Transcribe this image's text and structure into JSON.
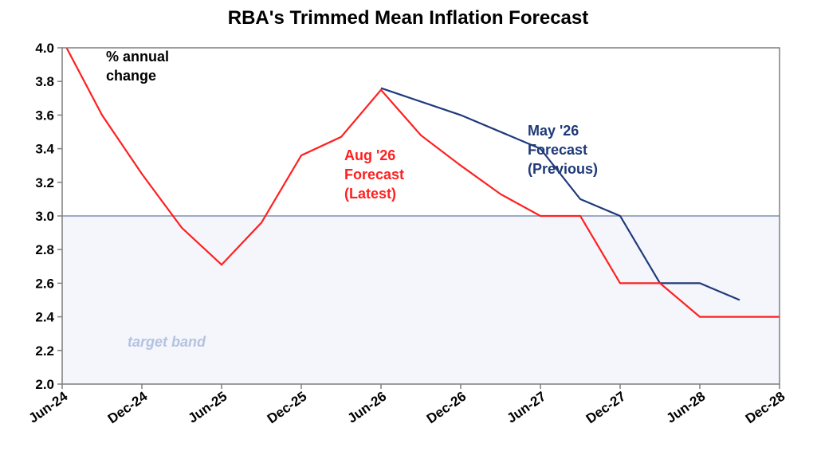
{
  "chart_data": {
    "type": "line",
    "title": "RBA's Trimmed Mean Inflation Forecast",
    "ylabel": "% annual change",
    "ylim": [
      2.0,
      4.0
    ],
    "y_ticks": [
      "4.0",
      "3.8",
      "3.6",
      "3.4",
      "3.2",
      "3.0",
      "2.8",
      "2.6",
      "2.4",
      "2.2",
      "2.0"
    ],
    "x_tick_labels": [
      "Jun-24",
      "Dec-24",
      "Jun-25",
      "Dec-25",
      "Jun-26",
      "Dec-26",
      "Jun-27",
      "Dec-27",
      "Jun-28",
      "Dec-28"
    ],
    "xlim": [
      "2024-06",
      "2028-12"
    ],
    "target_band": {
      "label": "target band",
      "range": [
        2.0,
        3.0
      ],
      "color": "#f4f6fc",
      "edge_color": "#7f8fb3"
    },
    "series": [
      {
        "label": "May '26 Forecast (Previous)",
        "label_lines": [
          "May '26",
          "Forecast",
          "(Previous)"
        ],
        "color": "#1f3a7a",
        "points": [
          {
            "x": "2026-06",
            "y": 3.76
          },
          {
            "x": "2026-12",
            "y": 3.6
          },
          {
            "x": "2027-06",
            "y": 3.4
          },
          {
            "x": "2027-09",
            "y": 3.1
          },
          {
            "x": "2027-12",
            "y": 3.0
          },
          {
            "x": "2028-03",
            "y": 2.6
          },
          {
            "x": "2028-06",
            "y": 2.6
          },
          {
            "x": "2028-09",
            "y": 2.5
          }
        ]
      },
      {
        "label": "Aug '26 Forecast (Latest)",
        "label_lines": [
          "Aug '26",
          "Forecast",
          "(Latest)"
        ],
        "color": "#ff2020",
        "points": [
          {
            "x": "2024-06",
            "y": 4.05
          },
          {
            "x": "2024-09",
            "y": 3.6
          },
          {
            "x": "2024-12",
            "y": 3.25
          },
          {
            "x": "2025-03",
            "y": 2.93
          },
          {
            "x": "2025-06",
            "y": 2.71
          },
          {
            "x": "2025-09",
            "y": 2.96
          },
          {
            "x": "2025-12",
            "y": 3.36
          },
          {
            "x": "2026-03",
            "y": 3.47
          },
          {
            "x": "2026-06",
            "y": 3.75
          },
          {
            "x": "2026-09",
            "y": 3.48
          },
          {
            "x": "2026-12",
            "y": 3.3
          },
          {
            "x": "2027-03",
            "y": 3.13
          },
          {
            "x": "2027-06",
            "y": 3.0
          },
          {
            "x": "2027-09",
            "y": 3.0
          },
          {
            "x": "2027-12",
            "y": 2.6
          },
          {
            "x": "2028-03",
            "y": 2.6
          },
          {
            "x": "2028-06",
            "y": 2.4
          },
          {
            "x": "2028-09",
            "y": 2.4
          },
          {
            "x": "2028-12",
            "y": 2.4
          }
        ]
      }
    ],
    "grid": false,
    "legend": "inline-labels"
  }
}
